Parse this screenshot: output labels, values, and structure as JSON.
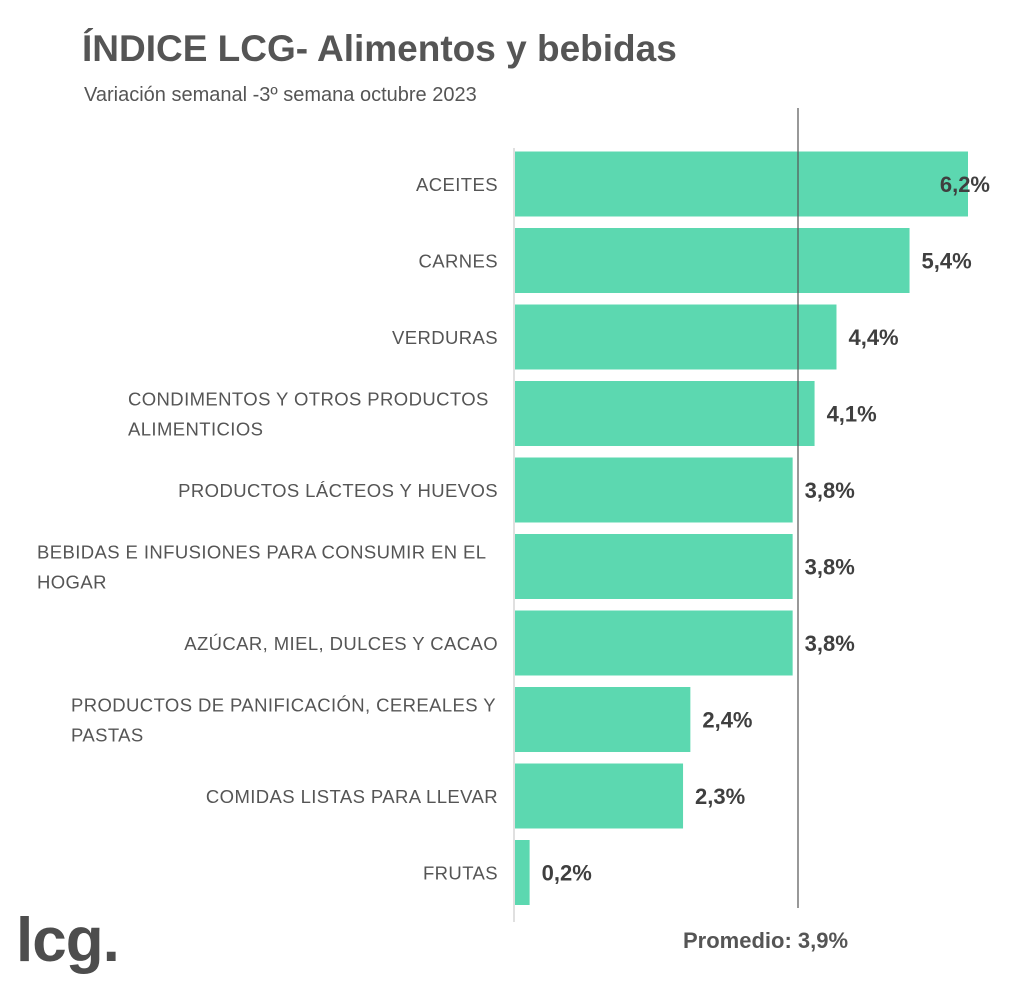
{
  "title": "ÍNDICE LCG- Alimentos y bebidas",
  "subtitle": "Variación semanal -3º semana octubre 2023",
  "logo_text": "lcg.",
  "colors": {
    "bar": "#5cd8b0",
    "average_line": "#555555",
    "axis": "#cccccc",
    "text": "#555555"
  },
  "chart_data": {
    "type": "bar",
    "orientation": "horizontal",
    "categories": [
      "ACEITES",
      "CARNES",
      "VERDURAS",
      "CONDIMENTOS Y OTROS PRODUCTOS ALIMENTICIOS",
      "PRODUCTOS LÁCTEOS Y HUEVOS",
      "BEBIDAS E INFUSIONES PARA CONSUMIR EN EL HOGAR",
      "AZÚCAR, MIEL, DULCES Y CACAO",
      "PRODUCTOS DE PANIFICACIÓN, CEREALES Y PASTAS",
      "COMIDAS LISTAS PARA LLEVAR",
      "FRUTAS"
    ],
    "category_lines": [
      [
        "ACEITES"
      ],
      [
        "CARNES"
      ],
      [
        "VERDURAS"
      ],
      [
        "CONDIMENTOS Y OTROS PRODUCTOS",
        "ALIMENTICIOS"
      ],
      [
        "PRODUCTOS LÁCTEOS Y HUEVOS"
      ],
      [
        "BEBIDAS E INFUSIONES PARA CONSUMIR EN EL",
        "HOGAR"
      ],
      [
        "AZÚCAR, MIEL, DULCES Y CACAO"
      ],
      [
        "PRODUCTOS DE PANIFICACIÓN, CEREALES Y",
        "PASTAS"
      ],
      [
        "COMIDAS LISTAS PARA LLEVAR"
      ],
      [
        "FRUTAS"
      ]
    ],
    "values": [
      6.2,
      5.4,
      4.4,
      4.1,
      3.8,
      3.8,
      3.8,
      2.4,
      2.3,
      0.2
    ],
    "value_labels": [
      "6,2%",
      "5,4%",
      "4,4%",
      "4,1%",
      "3,8%",
      "3,8%",
      "3,8%",
      "2,4%",
      "2,3%",
      "0,2%"
    ],
    "average": 3.9,
    "average_label": "Promedio: 3,9%",
    "xlim": [
      0,
      6.2
    ],
    "grid": false,
    "legend": "none"
  }
}
